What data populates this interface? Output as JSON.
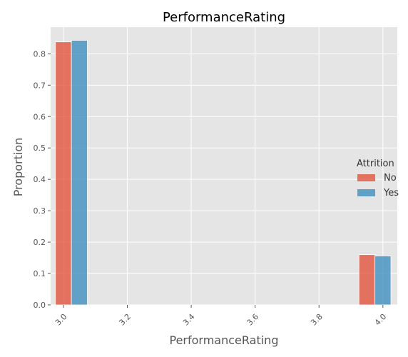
{
  "chart_data": {
    "type": "bar",
    "title": "PerformanceRating",
    "xlabel": "PerformanceRating",
    "ylabel": "Proportion",
    "xlim": [
      2.96,
      4.045
    ],
    "ylim": [
      0,
      0.885
    ],
    "xticks": [
      "3.0",
      "3.2",
      "3.4",
      "3.6",
      "3.8",
      "4.0"
    ],
    "yticks": [
      "0.0",
      "0.1",
      "0.2",
      "0.3",
      "0.4",
      "0.5",
      "0.6",
      "0.7",
      "0.8"
    ],
    "grid": true,
    "legend": {
      "title": "Attrition",
      "placement": "right"
    },
    "bin_width": 0.05,
    "series": [
      {
        "name": "No",
        "color": "#E24A33",
        "bars": [
          {
            "x": 3.0,
            "value": 0.838
          },
          {
            "x": 3.95,
            "value": 0.16
          }
        ]
      },
      {
        "name": "Yes",
        "color": "#348ABD",
        "bars": [
          {
            "x": 3.05,
            "value": 0.843
          },
          {
            "x": 4.0,
            "value": 0.156
          }
        ]
      }
    ]
  }
}
